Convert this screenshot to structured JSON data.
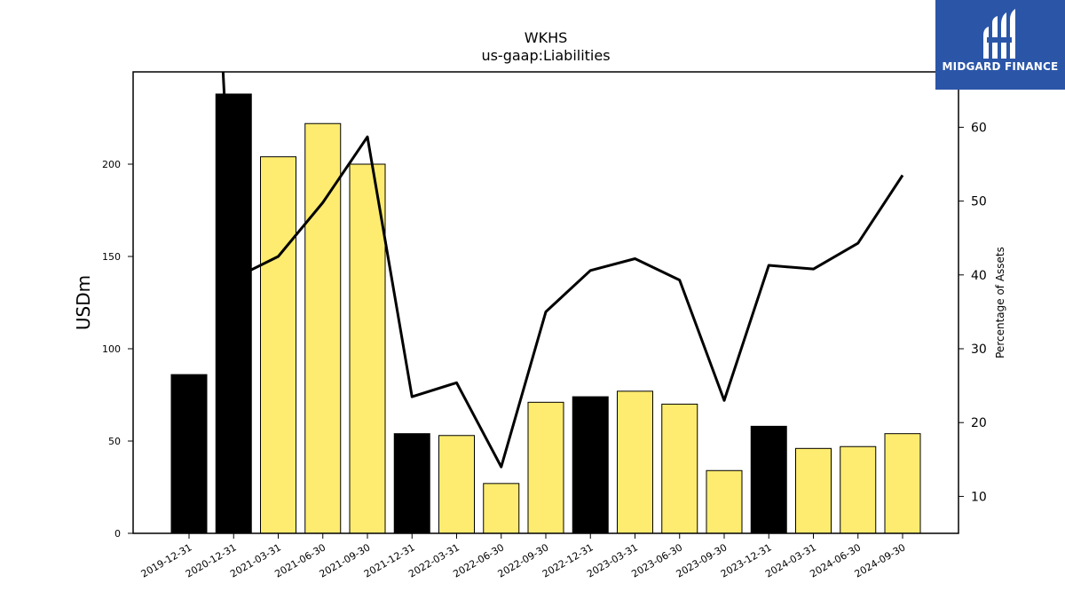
{
  "chart_data": {
    "type": "bar",
    "title": "WKHS",
    "subtitle": "us-gaap:Liabilities",
    "ylabel": "USDm",
    "y2label": "Percentage of Assets",
    "ylim": [
      0,
      250
    ],
    "y2lim": [
      5,
      67.5
    ],
    "yticks": [
      0,
      50,
      100,
      150,
      200
    ],
    "y2ticks": [
      10,
      20,
      30,
      40,
      50,
      60
    ],
    "categories": [
      "2019-12-31",
      "2020-12-31",
      "2021-03-31",
      "2021-06-30",
      "2021-09-30",
      "2021-12-31",
      "2022-03-31",
      "2022-06-30",
      "2022-09-30",
      "2022-12-31",
      "2023-03-31",
      "2023-06-30",
      "2023-09-30",
      "2023-12-31",
      "2024-03-31",
      "2024-06-30",
      "2024-09-30"
    ],
    "series": [
      {
        "type": "bar",
        "values": [
          86,
          238,
          204,
          222,
          200,
          54,
          53,
          27,
          71,
          74,
          77,
          70,
          34,
          58,
          46,
          47,
          54
        ],
        "colors": [
          "#000000",
          "#000000",
          "#fdec6f",
          "#fdec6f",
          "#fdec6f",
          "#000000",
          "#fdec6f",
          "#fdec6f",
          "#fdec6f",
          "#000000",
          "#fdec6f",
          "#fdec6f",
          "#fdec6f",
          "#000000",
          "#fdec6f",
          "#fdec6f",
          "#fdec6f"
        ]
      },
      {
        "type": "line",
        "axis": "right",
        "color": "#000000",
        "values": [
          null,
          39.5,
          42.5,
          49.8,
          58.7,
          23.5,
          25.4,
          14.0,
          35.0,
          40.6,
          42.2,
          39.3,
          23.0,
          41.3,
          40.8,
          44.3,
          53.5
        ],
        "entry_from_above": true
      }
    ]
  },
  "logo": {
    "text": "MIDGARD FINANCE"
  }
}
